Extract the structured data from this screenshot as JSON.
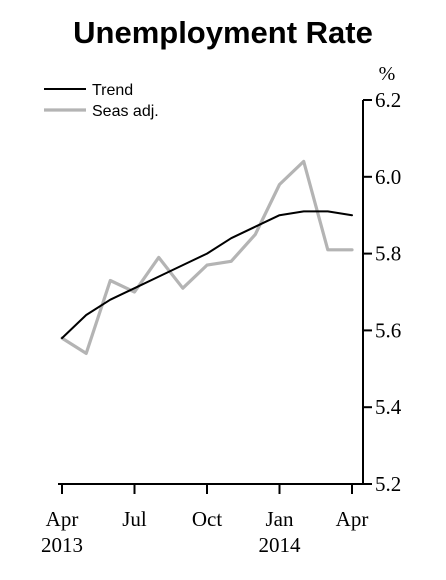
{
  "chart_data": {
    "type": "line",
    "title": "Unemployment Rate",
    "unit": "%",
    "x": [
      "2013-04",
      "2013-05",
      "2013-06",
      "2013-07",
      "2013-08",
      "2013-09",
      "2013-10",
      "2013-11",
      "2013-12",
      "2014-01",
      "2014-02",
      "2014-03",
      "2014-04"
    ],
    "x_ticks": [
      {
        "month": "2013-04",
        "label": "Apr",
        "year": "2013"
      },
      {
        "month": "2013-07",
        "label": "Jul",
        "year": ""
      },
      {
        "month": "2013-10",
        "label": "Oct",
        "year": ""
      },
      {
        "month": "2014-01",
        "label": "Jan",
        "year": "2014"
      },
      {
        "month": "2014-04",
        "label": "Apr",
        "year": ""
      }
    ],
    "y_ticks": [
      "5.2",
      "5.4",
      "5.6",
      "5.8",
      "6.0",
      "6.2"
    ],
    "ylim": [
      5.2,
      6.2
    ],
    "y_axis_side": "right",
    "legend_position": "top-left",
    "grid": false,
    "series": [
      {
        "name": "Trend",
        "color": "#000000",
        "values": [
          5.58,
          5.64,
          5.68,
          5.71,
          5.74,
          5.77,
          5.8,
          5.84,
          5.87,
          5.9,
          5.91,
          5.91,
          5.9
        ]
      },
      {
        "name": "Seas adj.",
        "color": "#b4b4b4",
        "values": [
          5.58,
          5.54,
          5.73,
          5.7,
          5.79,
          5.71,
          5.77,
          5.78,
          5.85,
          5.98,
          6.04,
          5.81,
          5.81
        ]
      }
    ]
  }
}
